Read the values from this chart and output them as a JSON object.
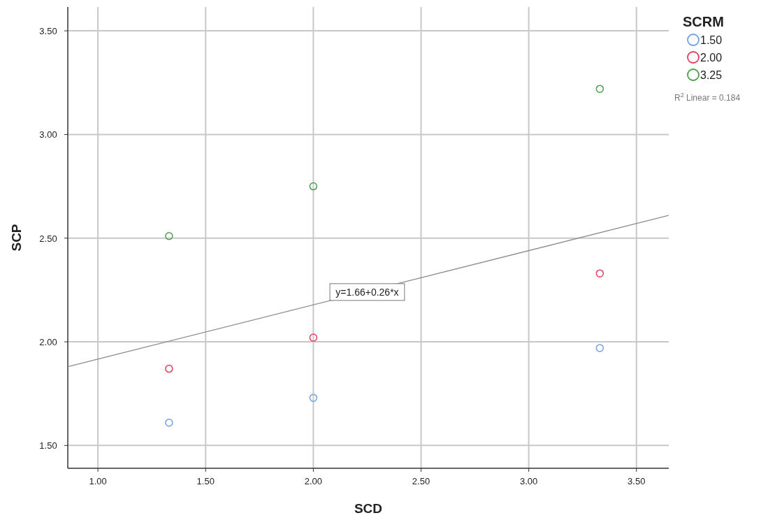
{
  "chart_data": {
    "type": "scatter",
    "xlabel": "SCD",
    "ylabel": "SCP",
    "legend_title": "SCRM",
    "legend": "top right",
    "grid": true,
    "marker": "circle",
    "xlim": [
      0.86,
      3.65
    ],
    "xticks": [
      {
        "value": 1,
        "label": "1.00"
      },
      {
        "value": 1.5,
        "label": "1.50"
      },
      {
        "value": 2,
        "label": "2.00"
      },
      {
        "value": 2.5,
        "label": "2.50"
      },
      {
        "value": 3,
        "label": "3.00"
      },
      {
        "value": 3.5,
        "label": "3.50"
      }
    ],
    "ylim": [
      1.39,
      3.615
    ],
    "yticks": [
      {
        "value": 1.5,
        "label": "1.50"
      },
      {
        "value": 2,
        "label": "2.00"
      },
      {
        "value": 2.5,
        "label": "2.50"
      },
      {
        "value": 3,
        "label": "3.00"
      },
      {
        "value": 3.5,
        "label": "3.50"
      }
    ],
    "series": [
      {
        "name": "1.50",
        "color": "#6fa0e6",
        "x": [
          1.33,
          2.0,
          3.33
        ],
        "values": [
          1.61,
          1.73,
          1.97
        ]
      },
      {
        "name": "2.00",
        "color": "#e0405e",
        "x": [
          1.33,
          2.0,
          3.33
        ],
        "values": [
          1.87,
          2.02,
          2.33
        ]
      },
      {
        "name": "3.25",
        "color": "#4aa04a",
        "x": [
          1.33,
          2.0,
          3.33
        ],
        "values": [
          2.51,
          2.75,
          3.22
        ]
      },
      {
        "type": "line",
        "marker": "none",
        "color": "#8c8c8c",
        "x": [
          0.86,
          3.65
        ],
        "values": [
          1.88,
          2.61
        ]
      }
    ],
    "annotations": [
      {
        "text": "y=1.66+0.26*x",
        "x": 2.25,
        "y": 2.24
      },
      "R$^{2}$ Linear = 0.184"
    ]
  }
}
